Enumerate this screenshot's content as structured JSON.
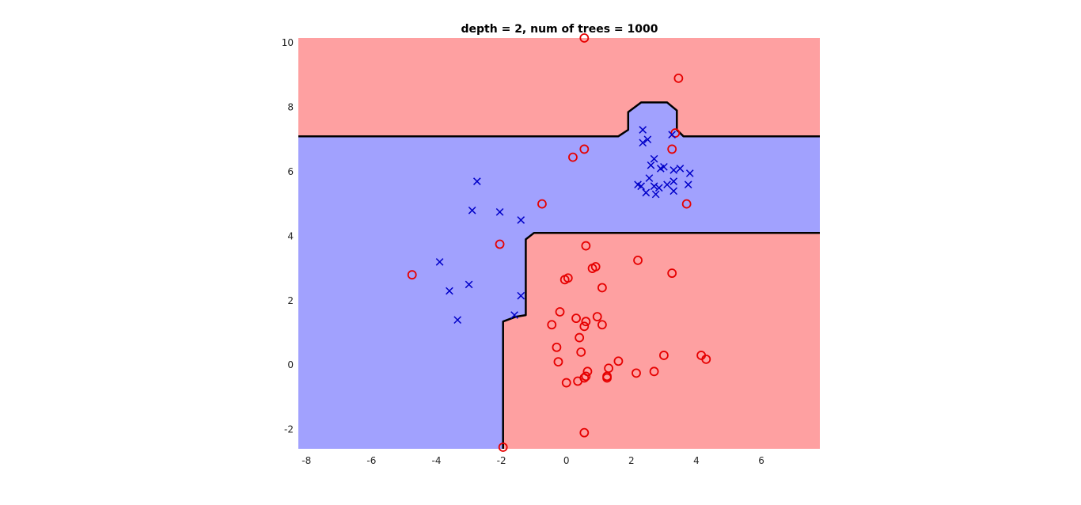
{
  "chart_data": {
    "type": "scatter",
    "title": "depth = 2, num of trees = 1000",
    "xlabel": "",
    "ylabel": "",
    "xlim": [
      -8.25,
      7.8
    ],
    "ylim": [
      -2.6,
      10.15
    ],
    "xticks": [
      -8,
      -6,
      -4,
      -2,
      0,
      2,
      4,
      6
    ],
    "yticks": [
      -2,
      0,
      2,
      4,
      6,
      8,
      10
    ],
    "grid": false,
    "legend": "none",
    "colors": {
      "region_red": "#fea0a1",
      "region_blue": "#a1a1fe",
      "circle_marker": "#e60000",
      "x_marker": "#0000c8",
      "boundary": "#000000"
    },
    "regions": [
      {
        "class": "red",
        "polygon": [
          [
            -8.25,
            10.15
          ],
          [
            7.8,
            10.15
          ],
          [
            7.8,
            7.1
          ],
          [
            3.6,
            7.1
          ],
          [
            3.4,
            7.3
          ],
          [
            3.4,
            7.9
          ],
          [
            3.1,
            8.15
          ],
          [
            2.3,
            8.15
          ],
          [
            1.9,
            7.85
          ],
          [
            1.9,
            7.3
          ],
          [
            1.6,
            7.1
          ],
          [
            -8.25,
            7.1
          ]
        ]
      },
      {
        "class": "red",
        "polygon": [
          [
            -1.95,
            -2.6
          ],
          [
            7.8,
            -2.6
          ],
          [
            7.8,
            4.1
          ],
          [
            -1.0,
            4.1
          ],
          [
            -1.25,
            3.9
          ],
          [
            -1.25,
            1.55
          ],
          [
            -1.55,
            1.5
          ],
          [
            -1.95,
            1.35
          ]
        ]
      }
    ],
    "boundaries": [
      {
        "points": [
          [
            -8.25,
            7.1
          ],
          [
            1.6,
            7.1
          ],
          [
            1.9,
            7.3
          ],
          [
            1.9,
            7.85
          ],
          [
            2.3,
            8.15
          ],
          [
            3.1,
            8.15
          ],
          [
            3.4,
            7.9
          ],
          [
            3.4,
            7.3
          ],
          [
            3.6,
            7.1
          ],
          [
            7.8,
            7.1
          ]
        ]
      },
      {
        "points": [
          [
            -1.95,
            -2.6
          ],
          [
            -1.95,
            1.35
          ],
          [
            -1.55,
            1.5
          ],
          [
            -1.25,
            1.55
          ],
          [
            -1.25,
            3.9
          ],
          [
            -1.0,
            4.1
          ],
          [
            7.8,
            4.1
          ]
        ]
      }
    ],
    "series": [
      {
        "marker": "o",
        "points": [
          [
            0.55,
            10.15
          ],
          [
            3.45,
            8.9
          ],
          [
            3.35,
            7.2
          ],
          [
            3.25,
            6.7
          ],
          [
            0.55,
            6.7
          ],
          [
            0.2,
            6.45
          ],
          [
            3.7,
            5.0
          ],
          [
            -0.75,
            5.0
          ],
          [
            -2.05,
            3.75
          ],
          [
            0.6,
            3.7
          ],
          [
            2.2,
            3.25
          ],
          [
            0.8,
            3.0
          ],
          [
            0.9,
            3.05
          ],
          [
            3.25,
            2.85
          ],
          [
            -4.75,
            2.8
          ],
          [
            0.05,
            2.7
          ],
          [
            -0.05,
            2.65
          ],
          [
            1.1,
            2.4
          ],
          [
            -0.2,
            1.65
          ],
          [
            0.95,
            1.5
          ],
          [
            0.3,
            1.45
          ],
          [
            0.6,
            1.35
          ],
          [
            -0.45,
            1.25
          ],
          [
            0.55,
            1.2
          ],
          [
            1.1,
            1.25
          ],
          [
            0.4,
            0.85
          ],
          [
            -0.3,
            0.55
          ],
          [
            0.45,
            0.4
          ],
          [
            3.0,
            0.3
          ],
          [
            4.15,
            0.3
          ],
          [
            4.3,
            0.18
          ],
          [
            1.6,
            0.12
          ],
          [
            -0.25,
            0.1
          ],
          [
            1.3,
            -0.1
          ],
          [
            0.65,
            -0.2
          ],
          [
            2.7,
            -0.2
          ],
          [
            2.15,
            -0.25
          ],
          [
            1.25,
            -0.35
          ],
          [
            1.25,
            -0.4
          ],
          [
            0.6,
            -0.35
          ],
          [
            0.55,
            -0.4
          ],
          [
            0.35,
            -0.5
          ],
          [
            0.0,
            -0.55
          ],
          [
            0.55,
            -2.1
          ],
          [
            -1.95,
            -2.55
          ]
        ]
      },
      {
        "marker": "x",
        "points": [
          [
            2.35,
            7.3
          ],
          [
            2.5,
            7.0
          ],
          [
            2.35,
            6.9
          ],
          [
            3.25,
            7.15
          ],
          [
            2.7,
            6.4
          ],
          [
            2.6,
            6.2
          ],
          [
            2.9,
            6.1
          ],
          [
            3.0,
            6.15
          ],
          [
            3.3,
            6.05
          ],
          [
            3.5,
            6.1
          ],
          [
            3.8,
            5.95
          ],
          [
            2.55,
            5.8
          ],
          [
            2.2,
            5.6
          ],
          [
            2.3,
            5.55
          ],
          [
            2.7,
            5.55
          ],
          [
            2.85,
            5.5
          ],
          [
            3.1,
            5.6
          ],
          [
            3.3,
            5.7
          ],
          [
            3.75,
            5.6
          ],
          [
            3.3,
            5.4
          ],
          [
            2.45,
            5.35
          ],
          [
            2.75,
            5.3
          ],
          [
            -2.75,
            5.7
          ],
          [
            -2.9,
            4.8
          ],
          [
            -2.05,
            4.75
          ],
          [
            -1.4,
            4.5
          ],
          [
            -3.9,
            3.2
          ],
          [
            -3.0,
            2.5
          ],
          [
            -3.6,
            2.3
          ],
          [
            -1.4,
            2.15
          ],
          [
            -1.6,
            1.55
          ],
          [
            -3.35,
            1.4
          ]
        ]
      }
    ]
  }
}
